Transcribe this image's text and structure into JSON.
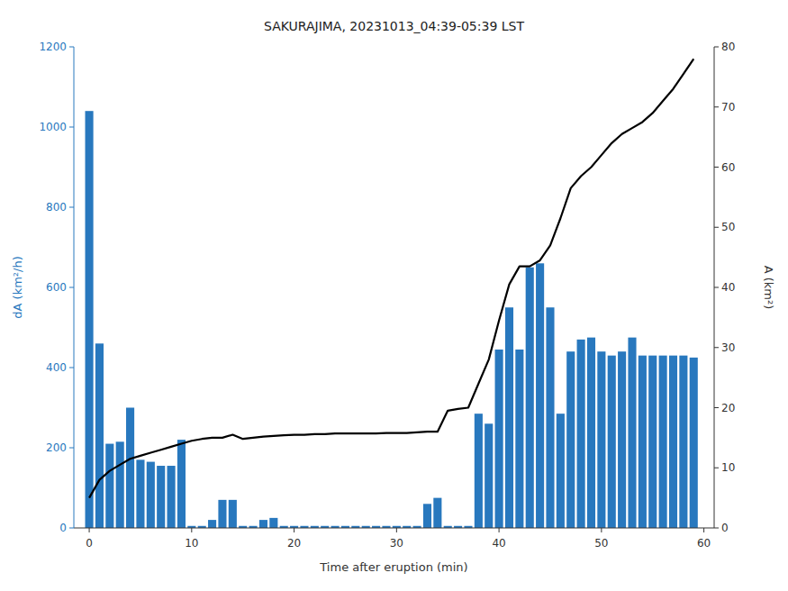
{
  "chart_data": {
    "type": "bar",
    "title": "SAKURAJIMA, 20231013_04:39-05:39 LST",
    "xlabel": "Time after eruption (min)",
    "ylabel": "dA (km²/h)",
    "y2label": "A (km²)",
    "x": [
      0,
      1,
      2,
      3,
      4,
      5,
      6,
      7,
      8,
      9,
      10,
      11,
      12,
      13,
      14,
      15,
      16,
      17,
      18,
      19,
      20,
      21,
      22,
      23,
      24,
      25,
      26,
      27,
      28,
      29,
      30,
      31,
      32,
      33,
      34,
      35,
      36,
      37,
      38,
      39,
      40,
      41,
      42,
      43,
      44,
      45,
      46,
      47,
      48,
      49,
      50,
      51,
      52,
      53,
      54,
      55,
      56,
      57,
      58,
      59
    ],
    "xlim": [
      -1.5,
      61
    ],
    "xticks": [
      0,
      10,
      20,
      30,
      40,
      50,
      60
    ],
    "ylim": [
      0,
      1200
    ],
    "yticks": [
      0,
      200,
      400,
      600,
      800,
      1000,
      1200
    ],
    "y2lim": [
      0,
      80
    ],
    "y2ticks": [
      0,
      10,
      20,
      30,
      40,
      50,
      60,
      70,
      80
    ],
    "grid": false,
    "series": [
      {
        "type": "bar",
        "color": "#2878BE",
        "values": [
          1040,
          460,
          210,
          215,
          300,
          170,
          165,
          155,
          155,
          220,
          5,
          5,
          20,
          70,
          70,
          5,
          5,
          20,
          25,
          5,
          5,
          5,
          5,
          5,
          5,
          5,
          5,
          5,
          5,
          5,
          5,
          5,
          5,
          60,
          75,
          5,
          5,
          5,
          285,
          260,
          445,
          550,
          445,
          650,
          660,
          550,
          285,
          440,
          470,
          475,
          440,
          430,
          440,
          475,
          430,
          430,
          430,
          430,
          430,
          425
        ]
      },
      {
        "type": "line",
        "color": "#000000",
        "axis": "y2",
        "values": [
          5.0,
          8.0,
          9.5,
          10.5,
          11.5,
          12.0,
          12.5,
          13.0,
          13.5,
          14.0,
          14.5,
          14.8,
          15.0,
          15.0,
          15.5,
          14.8,
          15.0,
          15.2,
          15.3,
          15.4,
          15.5,
          15.5,
          15.6,
          15.6,
          15.7,
          15.7,
          15.7,
          15.7,
          15.7,
          15.8,
          15.8,
          15.8,
          15.9,
          16.0,
          16.0,
          19.5,
          19.8,
          20.0,
          24.0,
          28.0,
          34.5,
          40.5,
          43.5,
          43.5,
          44.5,
          47.0,
          51.5,
          56.5,
          58.5,
          60.0,
          62.0,
          64.0,
          65.5,
          66.5,
          67.5,
          69.0,
          71.0,
          73.0,
          75.5,
          78.0
        ]
      }
    ]
  }
}
